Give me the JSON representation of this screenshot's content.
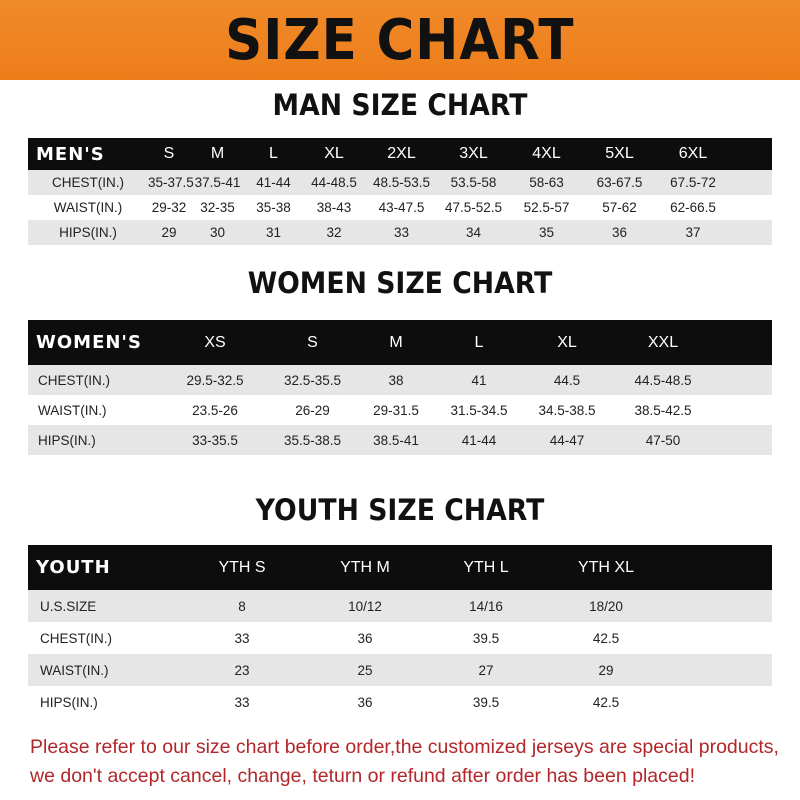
{
  "banner_title": "SIZE CHART",
  "men": {
    "title": "MAN SIZE CHART",
    "header": [
      "MEN'S",
      "S",
      "M",
      "L",
      "XL",
      "2XL",
      "3XL",
      "4XL",
      "5XL",
      "6XL"
    ],
    "rows": [
      [
        "CHEST(IN.)",
        "35-37.5",
        "37.5-41",
        "41-44",
        "44-48.5",
        "48.5-53.5",
        "53.5-58",
        "58-63",
        "63-67.5",
        "67.5-72"
      ],
      [
        "WAIST(IN.)",
        "29-32",
        "32-35",
        "35-38",
        "38-43",
        "43-47.5",
        "47.5-52.5",
        "52.5-57",
        "57-62",
        "62-66.5"
      ],
      [
        "HIPS(IN.)",
        "29",
        "30",
        "31",
        "32",
        "33",
        "34",
        "35",
        "36",
        "37"
      ]
    ]
  },
  "women": {
    "title": "WOMEN SIZE CHART",
    "header": [
      "WOMEN'S",
      "XS",
      "S",
      "M",
      "L",
      "XL",
      "XXL"
    ],
    "rows": [
      [
        "CHEST(IN.)",
        "29.5-32.5",
        "32.5-35.5",
        "38",
        "41",
        "44.5",
        "44.5-48.5"
      ],
      [
        "WAIST(IN.)",
        "23.5-26",
        "26-29",
        "29-31.5",
        "31.5-34.5",
        "34.5-38.5",
        "38.5-42.5"
      ],
      [
        "HIPS(IN.)",
        "33-35.5",
        "35.5-38.5",
        "38.5-41",
        "41-44",
        "44-47",
        "47-50"
      ]
    ]
  },
  "youth": {
    "title": "YOUTH SIZE CHART",
    "header": [
      "YOUTH",
      "YTH S",
      "YTH M",
      "YTH L",
      "YTH XL"
    ],
    "rows": [
      [
        "U.S.SIZE",
        "8",
        "10/12",
        "14/16",
        "18/20"
      ],
      [
        "CHEST(IN.)",
        "33",
        "36",
        "39.5",
        "42.5"
      ],
      [
        "WAIST(IN.)",
        "23",
        "25",
        "27",
        "29"
      ],
      [
        "HIPS(IN.)",
        "33",
        "36",
        "39.5",
        "42.5"
      ]
    ]
  },
  "note": {
    "line1": "Please refer to our size chart before order,the customized jerseys are special products,",
    "line2": "we don't accept cancel, change, teturn or refund after order has been placed!"
  }
}
